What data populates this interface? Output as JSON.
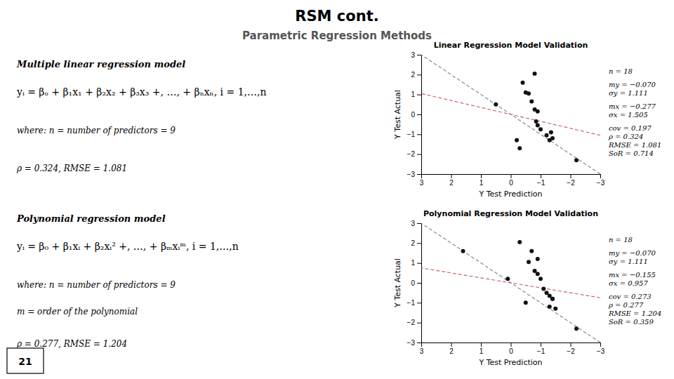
{
  "title": "RSM cont.",
  "subtitle": "Parametric Regression Methods",
  "annotations": [
    [
      "Multiple linear regression model",
      "yᵢ = βₒ + β₁x₁ + β₂x₂ + β₃x₃ +, …, + βₙxₙ, i = 1,…,n",
      "where: n = number of predictors = 9",
      "ρ = 0.324, RMSE = 1.081"
    ],
    [
      "Polynomial regression model",
      "yᵢ = β₀ + β₁xᵢ + β₂xᵢ² +, …, + βₘxᵢᵐ, i = 1,…,n",
      "where: n = number of predictors = 9",
      "m = order of the polynomial",
      "ρ = 0.277, RMSE = 1.204"
    ],
    [
      "21"
    ]
  ],
  "chart_data": [
    {
      "type": "scatter",
      "title": "Linear Regression Model Validation",
      "x_label": "Y Test Prediction",
      "y_label": "Y Test Actual",
      "xlim": [
        3,
        -3
      ],
      "ylim": [
        -3,
        3
      ],
      "xticks": [
        -3,
        -2,
        -1,
        0,
        1,
        2,
        3
      ],
      "yticks": [
        -3,
        -2,
        -1,
        0,
        1,
        2,
        3
      ],
      "grid": false,
      "annotations": [
        [
          "n = 18"
        ],
        [
          "my = −0.070",
          "σy = 1.111"
        ],
        [
          "mx = −0.277",
          "σx = 1.505"
        ],
        [
          "cov = 0.197",
          "ρ = 0.324",
          "RMSE = 1.081",
          "SoR = 0.714"
        ]
      ],
      "series": [
        {
          "type": "scatter",
          "color": "#111111",
          "x": [
            -0.8,
            -0.4,
            -0.5,
            -0.6,
            -0.7,
            -0.8,
            -0.9,
            -0.85,
            -0.9,
            -1.0,
            -1.2,
            -1.3,
            -1.35,
            -1.4,
            -2.2,
            -0.3,
            -0.2,
            0.5
          ],
          "values": [
            2.05,
            1.6,
            1.1,
            1.05,
            0.65,
            0.25,
            0.15,
            -0.35,
            -0.55,
            -0.75,
            -1.05,
            -1.3,
            -0.9,
            -1.2,
            -2.3,
            -1.7,
            -1.3,
            0.5
          ]
        },
        {
          "type": "line",
          "color": "#888888",
          "line_style": "dashed",
          "x": [
            -3,
            3
          ],
          "values": [
            -3,
            3
          ]
        },
        {
          "type": "line",
          "color": "#CC6666",
          "line_style": "dashed",
          "x": [
            -3,
            3
          ],
          "values": [
            -1.05,
            1.05
          ]
        }
      ]
    },
    {
      "type": "scatter",
      "title": "Polynomial Regression Model Validation",
      "x_label": "Y Test Prediction",
      "y_label": "Y Test Actual",
      "xlim": [
        3,
        -3
      ],
      "ylim": [
        -3,
        3
      ],
      "xticks": [
        -3,
        -2,
        -1,
        0,
        1,
        2,
        3
      ],
      "yticks": [
        -3,
        -2,
        -1,
        0,
        1,
        2,
        3
      ],
      "grid": false,
      "annotations": [
        [
          "n = 18"
        ],
        [
          "my = −0.070",
          "σy = 1.111"
        ],
        [
          "mx = −0.155",
          "σx = 0.957"
        ],
        [
          "cov = 0.273",
          "ρ = 0.277",
          "RMSE = 1.204",
          "SoR = 0.359"
        ]
      ],
      "series": [
        {
          "type": "scatter",
          "color": "#111111",
          "x": [
            -0.3,
            -0.9,
            -0.6,
            -0.7,
            -0.8,
            -0.9,
            -1.0,
            -1.1,
            -1.2,
            -1.3,
            -1.4,
            -1.5,
            -1.4,
            -1.3,
            -2.2,
            1.6,
            -0.5,
            0.1
          ],
          "values": [
            2.05,
            1.2,
            1.05,
            1.6,
            0.6,
            0.45,
            0.2,
            -0.3,
            -0.5,
            -0.65,
            -0.8,
            -1.3,
            -0.8,
            -1.2,
            -2.3,
            1.6,
            -1.0,
            0.2
          ]
        },
        {
          "type": "line",
          "color": "#888888",
          "line_style": "dashed",
          "x": [
            -3,
            3
          ],
          "values": [
            -3,
            3
          ]
        },
        {
          "type": "line",
          "color": "#CC6666",
          "line_style": "dashed",
          "x": [
            -3,
            3
          ],
          "values": [
            -0.75,
            0.75
          ]
        }
      ]
    }
  ]
}
